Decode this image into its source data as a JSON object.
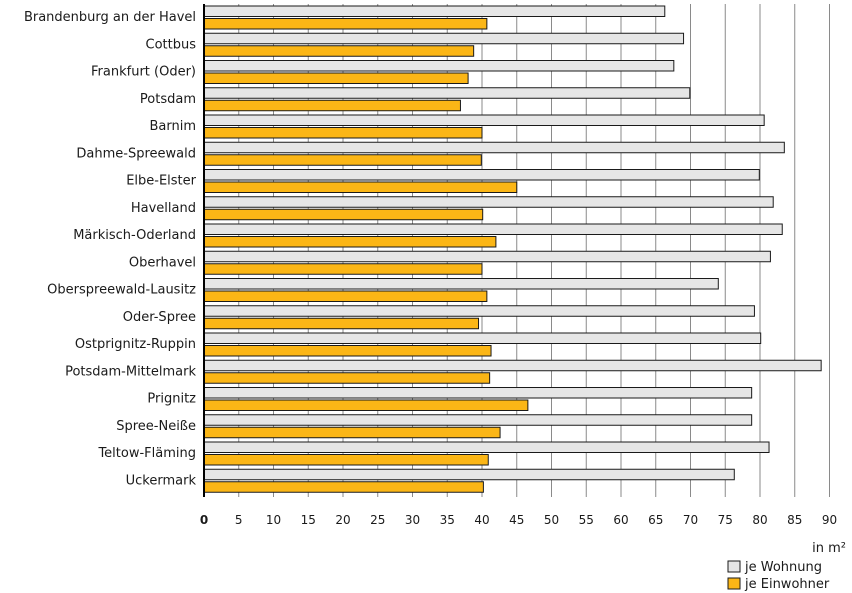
{
  "chart_data": {
    "type": "bar",
    "orientation": "horizontal",
    "categories": [
      "Brandenburg an der Havel",
      "Cottbus",
      "Frankfurt (Oder)",
      "Potsdam",
      "Barnim",
      "Dahme-Spreewald",
      "Elbe-Elster",
      "Havelland",
      "Märkisch-Oderland",
      "Oberhavel",
      "Oberspreewald-Lausitz",
      "Oder-Spree",
      "Ostprignitz-Ruppin",
      "Potsdam-Mittelmark",
      "Prignitz",
      "Spree-Neiße",
      "Teltow-Fläming",
      "Uckermark"
    ],
    "series": [
      {
        "name": "je Wohnung",
        "color": "#e6e6e6",
        "values": [
          66.3,
          69.0,
          67.6,
          69.9,
          80.6,
          83.5,
          79.9,
          81.9,
          83.2,
          81.5,
          74.0,
          79.2,
          80.1,
          88.8,
          78.8,
          78.8,
          81.3,
          76.3
        ]
      },
      {
        "name": "je Einwohner",
        "color": "#fbb616",
        "values": [
          40.7,
          38.8,
          38.0,
          36.9,
          40.0,
          39.9,
          45.0,
          40.1,
          42.0,
          40.0,
          40.7,
          39.5,
          41.3,
          41.1,
          46.6,
          42.6,
          40.9,
          40.2
        ]
      }
    ],
    "xticks": [
      "0",
      "5",
      "10",
      "15",
      "20",
      "25",
      "30",
      "35",
      "40",
      "45",
      "50",
      "55",
      "60",
      "65",
      "70",
      "75",
      "80",
      "85",
      "90"
    ],
    "xlim": [
      0,
      90
    ],
    "xlabel": "in m²",
    "grid": true,
    "legend_position": "bottom-right"
  }
}
